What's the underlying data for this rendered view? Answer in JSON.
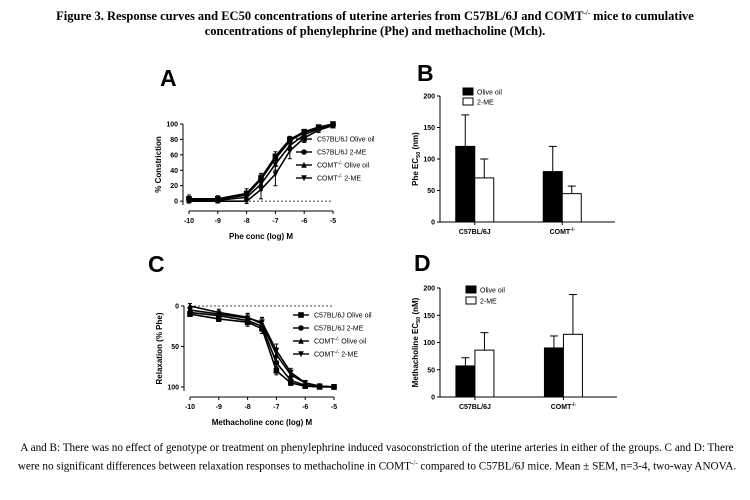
{
  "figure": {
    "title_part1": "Figure 3. Response curves and EC50 concentrations of uterine arteries from C57BL/6J and COMT",
    "title_sup": "-/-",
    "title_part2": " mice to cumulative",
    "title_line2": "concentrations of phenylephrine (Phe) and methacholine (Mch).",
    "caption_part1": "A and B: There was no effect of genotype or treatment on phenylephrine induced vasoconstriction of the uterine arteries in either of the groups. C and D: There were no significant differences between relaxation responses to methacholine in COMT",
    "caption_sup": "-/-",
    "caption_part2": " compared to C57BL/6J mice. Mean ± SEM, n=3-4, two-way ANOVA."
  },
  "chart_data": [
    {
      "panel": "A",
      "type": "line",
      "xlabel": "Phe conc (log) M",
      "ylabel": "% Constriction",
      "xlim": [
        -10,
        -5
      ],
      "ylim": [
        -5,
        100
      ],
      "xticks": [
        -10,
        -9,
        -8,
        -7,
        -6,
        -5
      ],
      "yticks": [
        0,
        20,
        40,
        60,
        80,
        100
      ],
      "ytick_labels": [
        "0",
        "20",
        "40",
        "60",
        "80",
        "100"
      ],
      "reference_line": 0,
      "x": [
        -10,
        -9,
        -8,
        -7.5,
        -7,
        -6.5,
        -6,
        -5.5,
        -5
      ],
      "series": [
        {
          "name": "C57BL/6J Olive oil",
          "marker": "square-filled",
          "values": [
            3,
            3,
            10,
            30,
            58,
            80,
            90,
            96,
            100
          ],
          "err": [
            5,
            4,
            6,
            6,
            6,
            4,
            3,
            2,
            1
          ]
        },
        {
          "name": "C57BL/6J 2-ME",
          "marker": "circle-filled",
          "values": [
            2,
            2,
            8,
            28,
            55,
            78,
            89,
            95,
            99
          ],
          "err": [
            4,
            3,
            5,
            6,
            6,
            4,
            3,
            2,
            1
          ]
        },
        {
          "name": "COMT-/- Olive oil",
          "marker": "triangle-up",
          "values": [
            1,
            1,
            5,
            22,
            48,
            72,
            86,
            94,
            98
          ],
          "err": [
            3,
            3,
            5,
            8,
            8,
            6,
            4,
            2,
            1
          ]
        },
        {
          "name": "COMT-/- 2-ME",
          "marker": "triangle-down",
          "values": [
            0,
            0,
            0,
            15,
            35,
            65,
            82,
            92,
            98
          ],
          "err": [
            2,
            2,
            3,
            12,
            15,
            10,
            6,
            3,
            2
          ]
        }
      ]
    },
    {
      "panel": "B",
      "type": "bar",
      "ylabel": "Phe EC50 (nm)",
      "categories": [
        "C57BL/6J",
        "COMT-/-"
      ],
      "ylim": [
        0,
        200
      ],
      "yticks": [
        0,
        50,
        100,
        150,
        200
      ],
      "series": [
        {
          "name": "Olive oil",
          "color": "#000000",
          "values": [
            120,
            80
          ],
          "err": [
            50,
            40
          ]
        },
        {
          "name": "2-ME",
          "color": "#ffffff",
          "values": [
            70,
            45
          ],
          "err": [
            30,
            12
          ]
        }
      ]
    },
    {
      "panel": "C",
      "type": "line",
      "xlabel": "Methacholine conc (log) M",
      "ylabel": "Relaxation (% Phe)",
      "xlim": [
        -10,
        -5
      ],
      "ylim": [
        0,
        105
      ],
      "y_inverted": true,
      "xticks": [
        -10,
        -9,
        -8,
        -7,
        -6,
        -5
      ],
      "yticks": [
        0,
        50,
        100
      ],
      "reference_line": 0,
      "x": [
        -10,
        -9,
        -8,
        -7.5,
        -7,
        -6.5,
        -6,
        -5.5,
        -5
      ],
      "series": [
        {
          "name": "C57BL/6J Olive oil",
          "marker": "square-filled",
          "values": [
            10,
            16,
            20,
            28,
            80,
            95,
            99,
            100,
            100
          ],
          "err": [
            3,
            3,
            5,
            6,
            5,
            3,
            2,
            1,
            1
          ]
        },
        {
          "name": "C57BL/6J 2-ME",
          "marker": "circle-filled",
          "values": [
            8,
            12,
            18,
            25,
            70,
            92,
            98,
            99,
            100
          ],
          "err": [
            3,
            4,
            5,
            6,
            6,
            4,
            2,
            1,
            1
          ]
        },
        {
          "name": "COMT-/- Olive oil",
          "marker": "triangle-up",
          "values": [
            0,
            8,
            14,
            22,
            60,
            85,
            95,
            99,
            100
          ],
          "err": [
            3,
            4,
            5,
            7,
            8,
            5,
            3,
            2,
            1
          ]
        },
        {
          "name": "COMT-/- 2-ME",
          "marker": "triangle-down",
          "values": [
            5,
            10,
            15,
            20,
            55,
            82,
            95,
            99,
            100
          ],
          "err": [
            3,
            4,
            5,
            6,
            8,
            5,
            3,
            2,
            1
          ]
        }
      ]
    },
    {
      "panel": "D",
      "type": "bar",
      "ylabel": "Methacholine EC50 (nM)",
      "categories": [
        "C57BL/6J",
        "COMT-/-"
      ],
      "ylim": [
        0,
        200
      ],
      "yticks": [
        0,
        50,
        100,
        150,
        200
      ],
      "series": [
        {
          "name": "Olive oil",
          "color": "#000000",
          "values": [
            57,
            90
          ],
          "err": [
            15,
            22
          ]
        },
        {
          "name": "2-ME",
          "color": "#ffffff",
          "values": [
            86,
            115
          ],
          "err": [
            32,
            73
          ]
        }
      ]
    }
  ]
}
